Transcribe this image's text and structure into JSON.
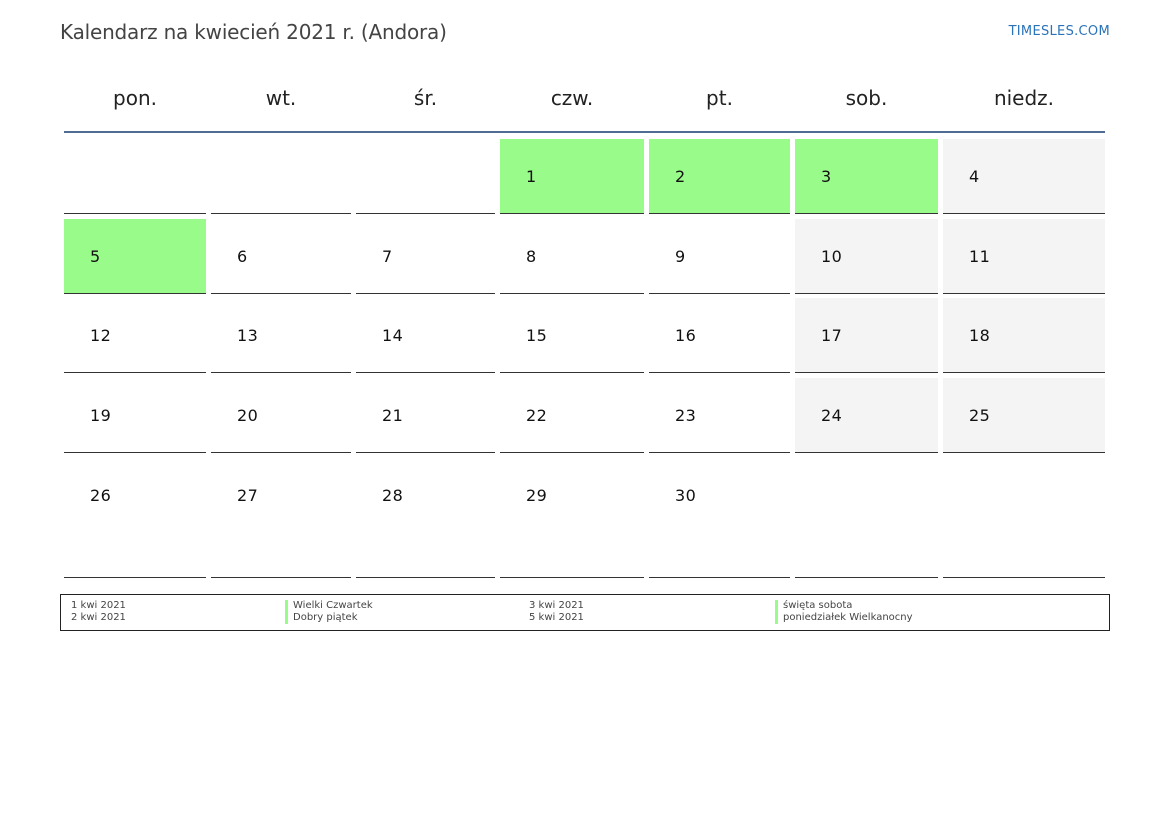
{
  "title": "Kalendarz na kwiecień 2021 r. (Andora)",
  "site_link": "TIMESLES.COM",
  "weekdays": [
    "pon.",
    "wt.",
    "śr.",
    "czw.",
    "pt.",
    "sob.",
    "niedz."
  ],
  "weeks": [
    [
      {
        "day": "",
        "type": "empty"
      },
      {
        "day": "",
        "type": "empty"
      },
      {
        "day": "",
        "type": "empty"
      },
      {
        "day": "1",
        "type": "holiday"
      },
      {
        "day": "2",
        "type": "holiday"
      },
      {
        "day": "3",
        "type": "holiday"
      },
      {
        "day": "4",
        "type": "weekend"
      }
    ],
    [
      {
        "day": "5",
        "type": "holiday"
      },
      {
        "day": "6",
        "type": "normal"
      },
      {
        "day": "7",
        "type": "normal"
      },
      {
        "day": "8",
        "type": "normal"
      },
      {
        "day": "9",
        "type": "normal"
      },
      {
        "day": "10",
        "type": "weekend"
      },
      {
        "day": "11",
        "type": "weekend"
      }
    ],
    [
      {
        "day": "12",
        "type": "normal"
      },
      {
        "day": "13",
        "type": "normal"
      },
      {
        "day": "14",
        "type": "normal"
      },
      {
        "day": "15",
        "type": "normal"
      },
      {
        "day": "16",
        "type": "normal"
      },
      {
        "day": "17",
        "type": "weekend"
      },
      {
        "day": "18",
        "type": "weekend"
      }
    ],
    [
      {
        "day": "19",
        "type": "normal"
      },
      {
        "day": "20",
        "type": "normal"
      },
      {
        "day": "21",
        "type": "normal"
      },
      {
        "day": "22",
        "type": "normal"
      },
      {
        "day": "23",
        "type": "normal"
      },
      {
        "day": "24",
        "type": "weekend"
      },
      {
        "day": "25",
        "type": "weekend"
      }
    ],
    [
      {
        "day": "26",
        "type": "normal"
      },
      {
        "day": "27",
        "type": "normal"
      },
      {
        "day": "28",
        "type": "normal"
      },
      {
        "day": "29",
        "type": "normal"
      },
      {
        "day": "30",
        "type": "normal"
      },
      {
        "day": "",
        "type": "empty-plain"
      },
      {
        "day": "",
        "type": "empty-plain"
      }
    ]
  ],
  "legend": {
    "col1_dates": [
      "1 kwi 2021",
      "2 kwi 2021"
    ],
    "col1_names": [
      "Wielki Czwartek",
      "Dobry piątek"
    ],
    "col2_dates": [
      "3 kwi 2021",
      "5 kwi 2021"
    ],
    "col2_names": [
      "święta sobota",
      "poniedziałek Wielkanocny"
    ]
  },
  "colors": {
    "holiday": "#99fb89",
    "weekend": "#f4f4f4",
    "header_line": "#4f6d94",
    "link": "#2a73b8"
  }
}
